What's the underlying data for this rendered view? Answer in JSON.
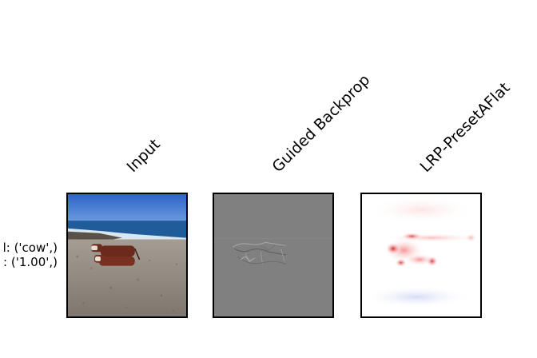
{
  "columns": [
    {
      "title": "Input"
    },
    {
      "title": "Guided Backprop"
    },
    {
      "title": "LRP-PresetAFlat"
    }
  ],
  "row": {
    "label_line1": "l: ('cow',)",
    "label_line2": ": ('1.00',)"
  },
  "colors": {
    "background": "#ffffff",
    "panel_border": "#000000",
    "gradient_gray": "#808080",
    "relevance_red": "#e0282a"
  }
}
